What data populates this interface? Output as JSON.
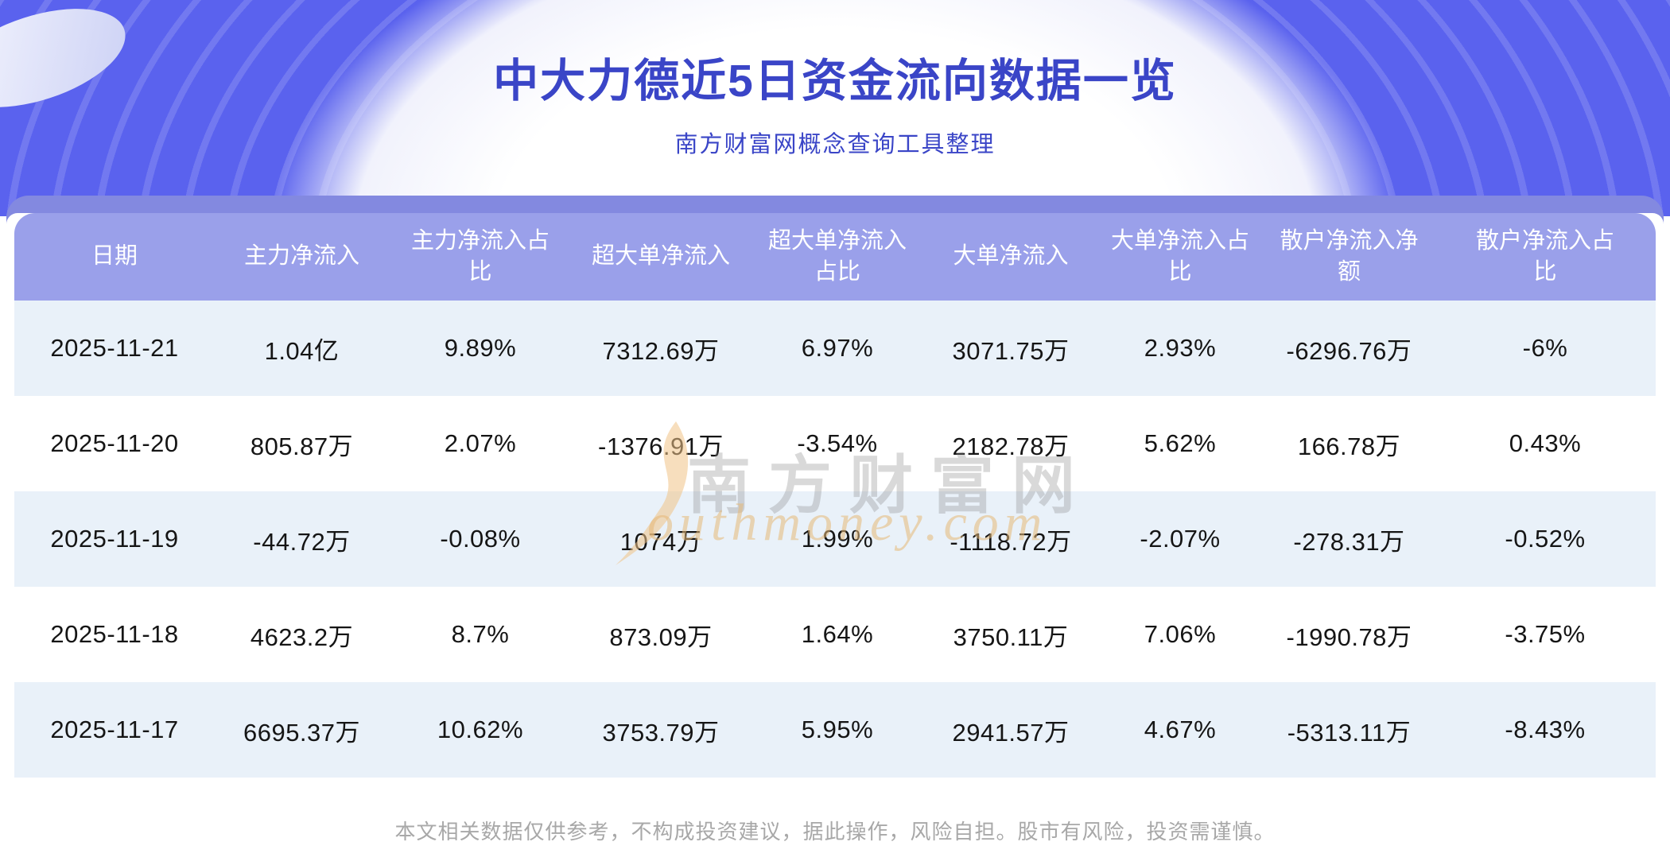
{
  "header": {
    "title": "中大力德近5日资金流向数据一览",
    "subtitle": "南方财富网概念查询工具整理"
  },
  "table": {
    "columns": [
      "日期",
      "主力净流入",
      "主力净流入占比",
      "超大单净流入",
      "超大单净流入占比",
      "大单净流入",
      "大单净流入占比",
      "散户净流入净额",
      "散户净流入占比"
    ],
    "rows": [
      [
        "2025-11-21",
        "1.04亿",
        "9.89%",
        "7312.69万",
        "6.97%",
        "3071.75万",
        "2.93%",
        "-6296.76万",
        "-6%"
      ],
      [
        "2025-11-20",
        "805.87万",
        "2.07%",
        "-1376.91万",
        "-3.54%",
        "2182.78万",
        "5.62%",
        "166.78万",
        "0.43%"
      ],
      [
        "2025-11-19",
        "-44.72万",
        "-0.08%",
        "1074万",
        "1.99%",
        "-1118.72万",
        "-2.07%",
        "-278.31万",
        "-0.52%"
      ],
      [
        "2025-11-18",
        "4623.2万",
        "8.7%",
        "873.09万",
        "1.64%",
        "3750.11万",
        "7.06%",
        "-1990.78万",
        "-3.75%"
      ],
      [
        "2025-11-17",
        "6695.37万",
        "10.62%",
        "3753.79万",
        "5.95%",
        "2941.57万",
        "4.67%",
        "-5313.11万",
        "-8.43%"
      ]
    ]
  },
  "chart_data": {
    "type": "table",
    "title": "中大力德近5日资金流向数据一览",
    "subtitle": "南方财富网概念查询工具整理",
    "columns": [
      "日期",
      "主力净流入",
      "主力净流入占比",
      "超大单净流入",
      "超大单净流入占比",
      "大单净流入",
      "大单净流入占比",
      "散户净流入净额",
      "散户净流入占比"
    ],
    "rows": [
      [
        "2025-11-21",
        "1.04亿",
        "9.89%",
        "7312.69万",
        "6.97%",
        "3071.75万",
        "2.93%",
        "-6296.76万",
        "-6%"
      ],
      [
        "2025-11-20",
        "805.87万",
        "2.07%",
        "-1376.91万",
        "-3.54%",
        "2182.78万",
        "5.62%",
        "166.78万",
        "0.43%"
      ],
      [
        "2025-11-19",
        "-44.72万",
        "-0.08%",
        "1074万",
        "1.99%",
        "-1118.72万",
        "-2.07%",
        "-278.31万",
        "-0.52%"
      ],
      [
        "2025-11-18",
        "4623.2万",
        "8.7%",
        "873.09万",
        "1.64%",
        "3750.11万",
        "7.06%",
        "-1990.78万",
        "-3.75%"
      ],
      [
        "2025-11-17",
        "6695.37万",
        "10.62%",
        "3753.79万",
        "5.95%",
        "2941.57万",
        "4.67%",
        "-5313.11万",
        "-8.43%"
      ]
    ]
  },
  "watermark": {
    "cn": "南方财富网",
    "en": "outhmoney.com"
  },
  "footer": {
    "disclaimer": "本文相关数据仅供参考，不构成投资建议，据此操作，风险自担。股市有风险，投资需谨慎。"
  },
  "colors": {
    "background_purple": "#5a62ee",
    "band_purple": "#8389e0",
    "table_header_purple": "#9aa0ea",
    "row_alt_blue": "#e9f1f9",
    "title_indigo": "#3a45c7",
    "watermark_orange": "#e8b876",
    "footer_gray": "#a8a8a8"
  }
}
